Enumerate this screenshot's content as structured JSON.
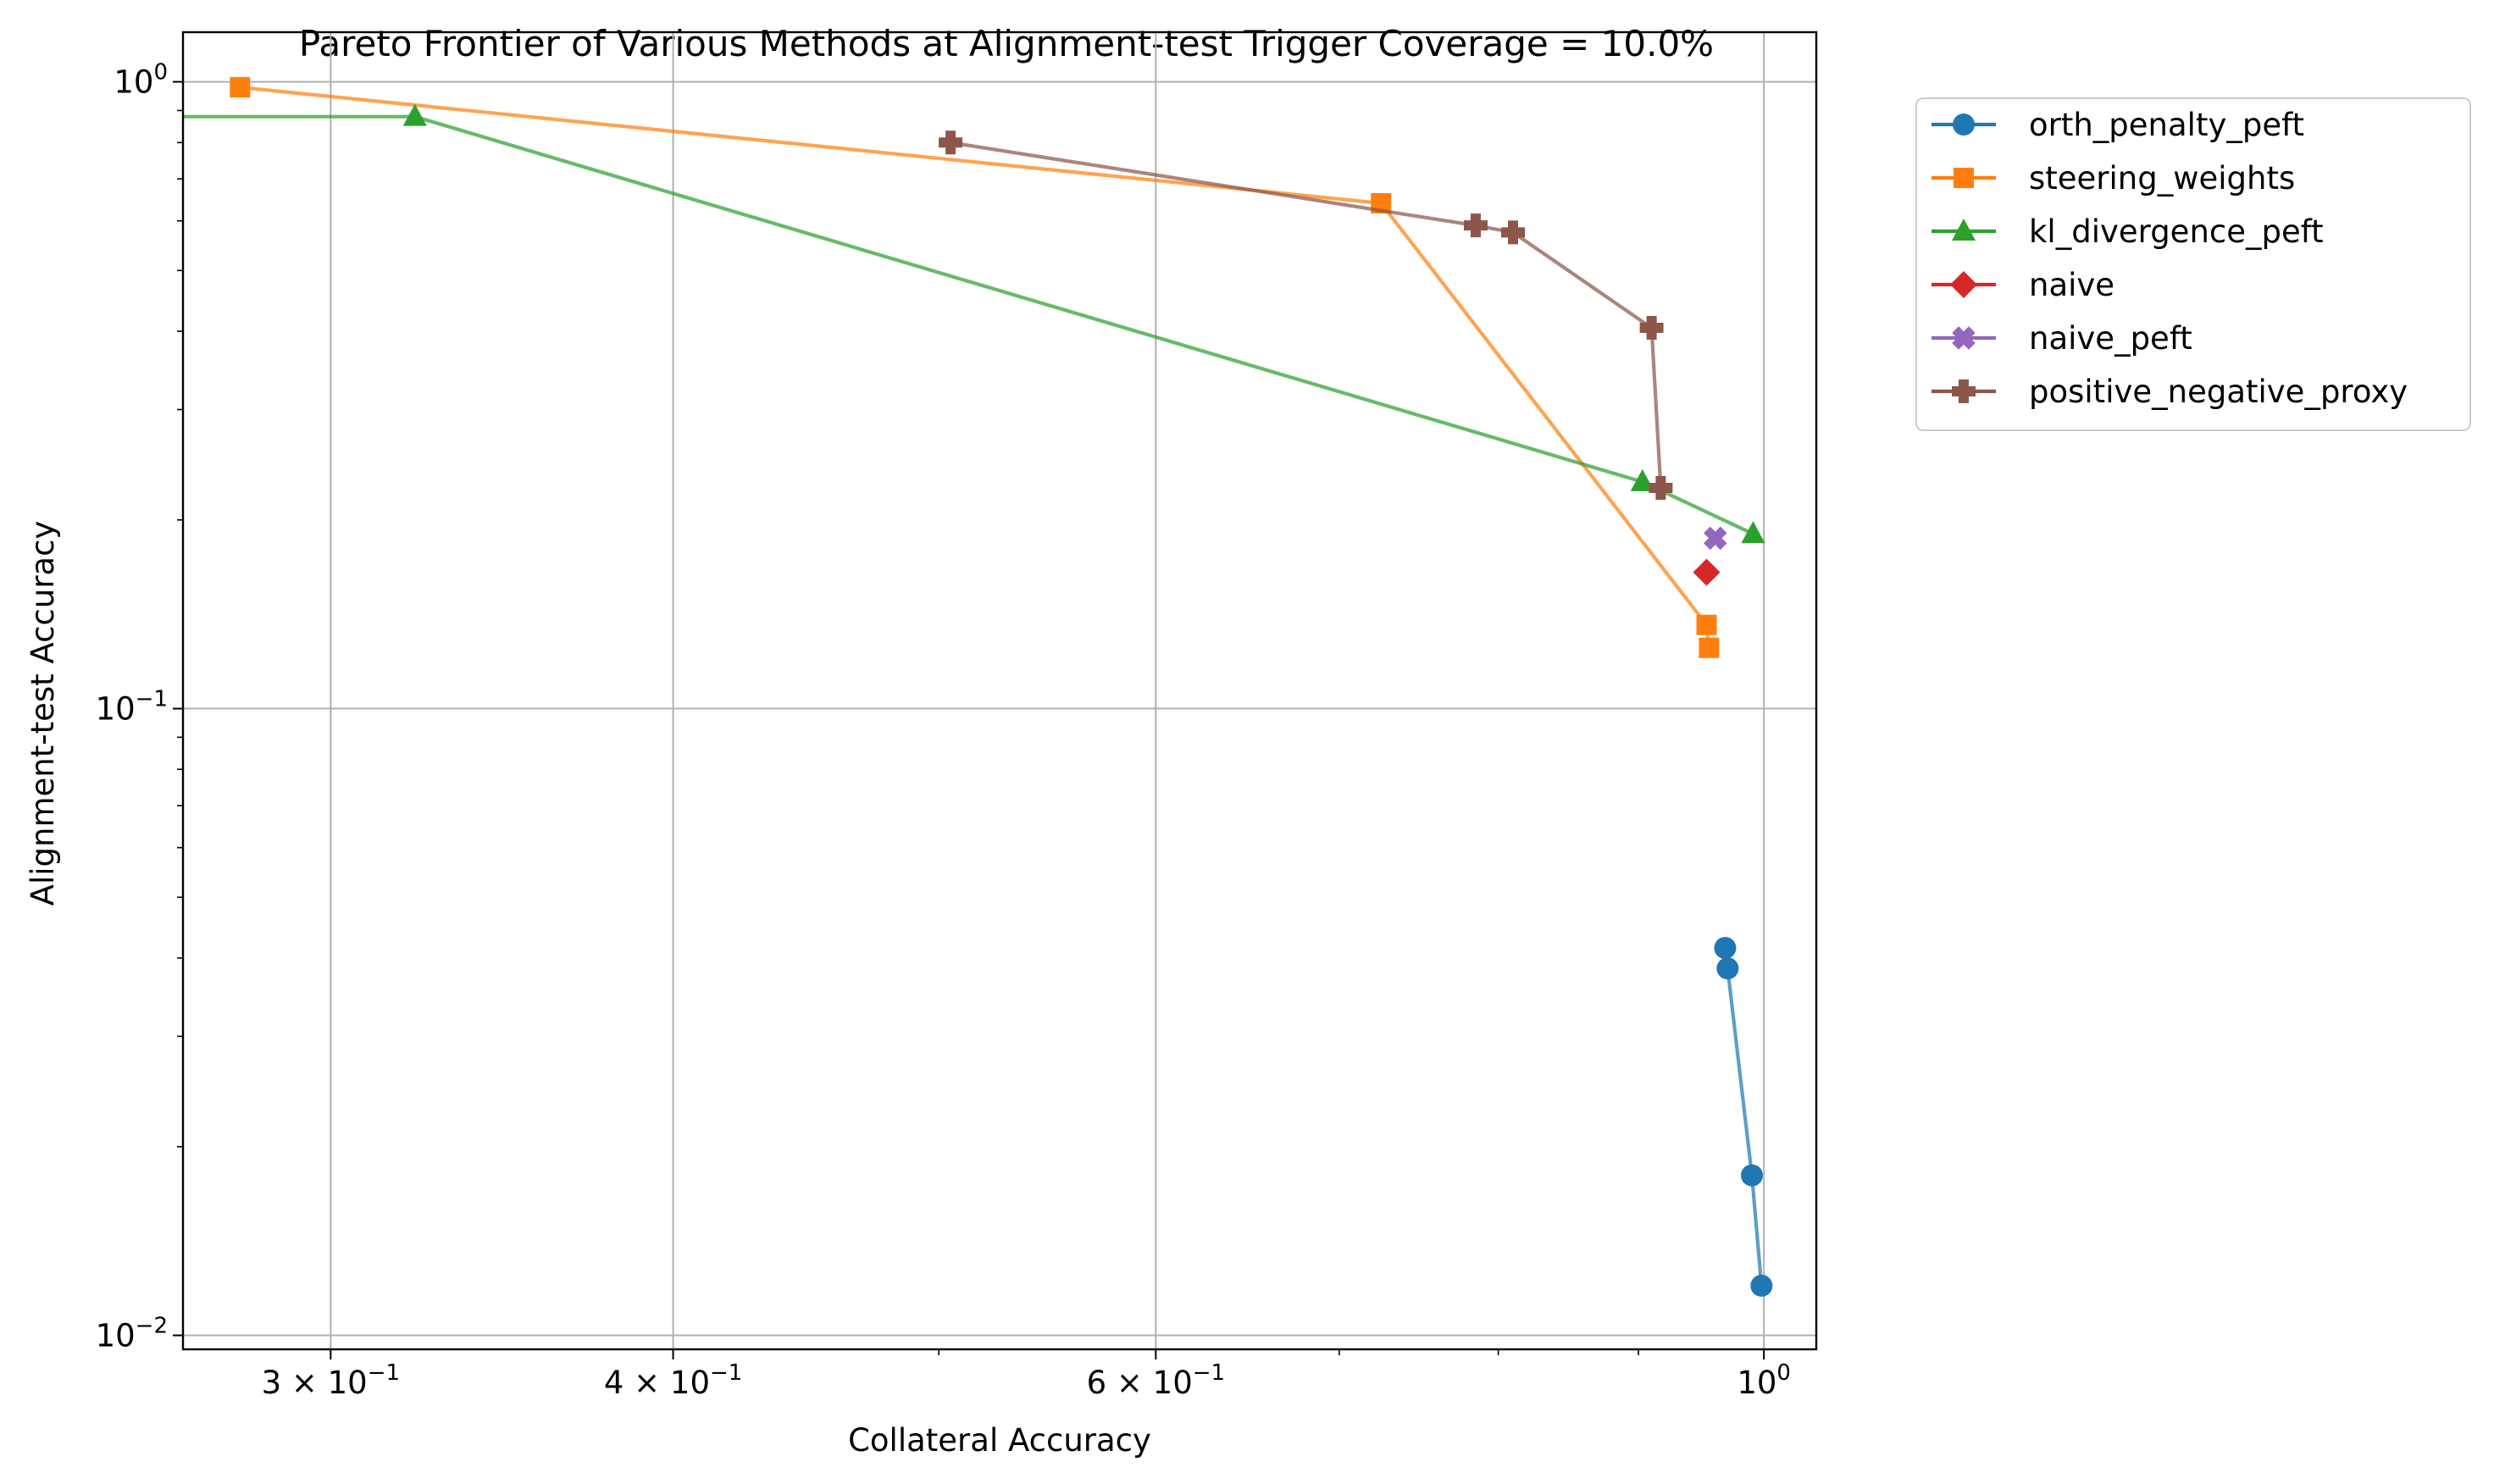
{
  "chart_data": {
    "type": "line",
    "title": "Pareto Frontier of Various Methods at Alignment-test Trigger Coverage = 10.0%",
    "xlabel": "Collateral Accuracy",
    "ylabel": "Alignment-test Accuracy",
    "xscale": "log",
    "yscale": "log",
    "xlim": [
      0.265,
      1.045
    ],
    "ylim": [
      0.0095,
      1.2
    ],
    "grid": "major",
    "legend_position": "outside-top-right",
    "xticks": [
      {
        "value": 0.3,
        "mantissa": "3",
        "exponent": "−1"
      },
      {
        "value": 0.4,
        "mantissa": "4",
        "exponent": "−1"
      },
      {
        "value": 0.6,
        "mantissa": "6",
        "exponent": "−1"
      },
      {
        "value": 1.0,
        "mantissa": "",
        "exponent": "0"
      }
    ],
    "yticks": [
      {
        "value": 0.01,
        "exponent": "−2"
      },
      {
        "value": 0.1,
        "exponent": "−1"
      },
      {
        "value": 1.0,
        "exponent": "0"
      }
    ],
    "series": [
      {
        "name": "orth_penalty_peft",
        "color": "#1f77b4",
        "marker": "circle",
        "x": [
          0.968,
          0.97,
          0.99,
          0.998
        ],
        "y": [
          0.0415,
          0.0385,
          0.018,
          0.012
        ]
      },
      {
        "name": "steering_weights",
        "color": "#ff7f0e",
        "marker": "square",
        "x": [
          0.278,
          0.725,
          0.953,
          0.955
        ],
        "y": [
          0.98,
          0.64,
          0.136,
          0.125
        ]
      },
      {
        "name": "kl_divergence_peft",
        "color": "#2ca02c",
        "marker": "triangle",
        "x": [
          0.2,
          0.322,
          0.903,
          0.991
        ],
        "y": [
          0.88,
          0.88,
          0.23,
          0.19
        ]
      },
      {
        "name": "naive",
        "color": "#d62728",
        "marker": "diamond",
        "x": [
          0.953
        ],
        "y": [
          0.165
        ]
      },
      {
        "name": "naive_peft",
        "color": "#9467bd",
        "marker": "x",
        "x": [
          0.96
        ],
        "y": [
          0.187
        ]
      },
      {
        "name": "positive_negative_proxy",
        "color": "#8c564b",
        "marker": "plus",
        "x": [
          0.505,
          0.785,
          0.81,
          0.91,
          0.917
        ],
        "y": [
          0.8,
          0.59,
          0.575,
          0.405,
          0.225
        ]
      }
    ]
  }
}
